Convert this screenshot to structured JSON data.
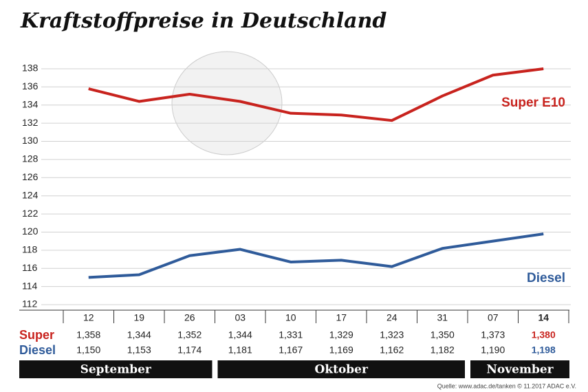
{
  "chart_data": {
    "type": "line",
    "title": "Kraftstoffpreise in Deutschland",
    "categories": [
      "12",
      "19",
      "26",
      "03",
      "10",
      "17",
      "24",
      "31",
      "07",
      "14"
    ],
    "groups": [
      "September",
      "Oktober",
      "November"
    ],
    "row_labels": [
      "Super",
      "Diesel"
    ],
    "series": [
      {
        "name": "Super E10",
        "color": "#c8231e",
        "values": [
          135.8,
          134.4,
          135.2,
          134.4,
          133.1,
          132.9,
          132.3,
          135.0,
          137.3,
          138.0
        ],
        "value_labels": [
          "1,358",
          "1,344",
          "1,352",
          "1,344",
          "1,331",
          "1,329",
          "1,323",
          "1,350",
          "1,373",
          "1,380"
        ]
      },
      {
        "name": "Diesel",
        "color": "#2f5b9a",
        "values": [
          115.0,
          115.3,
          117.4,
          118.1,
          116.7,
          116.9,
          116.2,
          118.2,
          119.0,
          119.8
        ],
        "value_labels": [
          "1,150",
          "1,153",
          "1,174",
          "1,181",
          "1,167",
          "1,169",
          "1,162",
          "1,182",
          "1,190",
          "1,198"
        ]
      }
    ],
    "ylim": [
      112,
      138
    ],
    "yticks": [
      112,
      114,
      116,
      118,
      120,
      122,
      124,
      126,
      128,
      130,
      132,
      134,
      136,
      138
    ],
    "grid": true,
    "source": "Quelle: www.adac.de/tanken  © 11.2017  ADAC e.V."
  }
}
